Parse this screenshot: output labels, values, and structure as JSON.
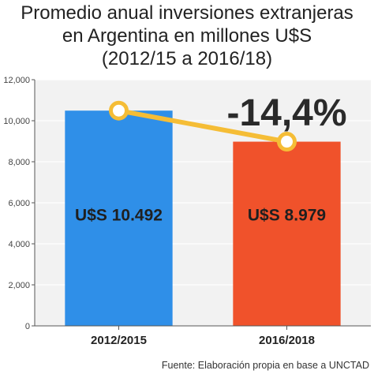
{
  "title": {
    "line1": "Promedio anual inversiones extranjeras",
    "line2": "en Argentina en millones U$S",
    "line3": "(2012/15 a 2016/18)"
  },
  "source": "Fuente: Elaboración propia en base a UNCTAD",
  "chart_data": {
    "type": "bar",
    "categories": [
      "2012/2015",
      "2016/2018"
    ],
    "values": [
      10492,
      8979
    ],
    "bar_labels": [
      "U$S 10.492",
      "U$S 8.979"
    ],
    "bar_colors": [
      "#2f8fe8",
      "#f0522b"
    ],
    "line_color": "#f5bd36",
    "change_label": "-14,4%",
    "ylim": [
      0,
      12000
    ],
    "yticks": [
      0,
      2000,
      4000,
      6000,
      8000,
      10000,
      12000
    ],
    "ytick_labels": [
      "0",
      "2,000",
      "4,000",
      "6,000",
      "8,000",
      "10,000",
      "12,000"
    ],
    "grid": true,
    "background": "#f2f2f2",
    "xlabel": "",
    "ylabel": ""
  }
}
